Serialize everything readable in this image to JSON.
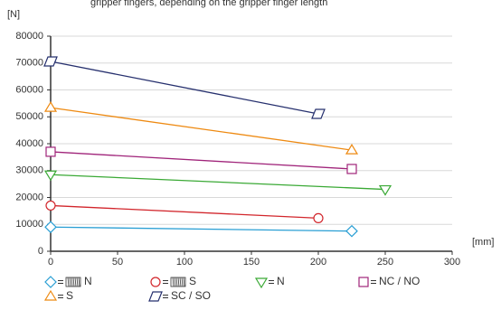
{
  "chart_data": {
    "type": "line",
    "title": "gripper fingers, depending on the gripper finger length",
    "y_label": "[N]",
    "x_label": "[mm]",
    "xlim": [
      0,
      300
    ],
    "xticks": [
      0,
      50,
      100,
      150,
      200,
      250,
      300
    ],
    "ylim": [
      0,
      80000
    ],
    "yticks": [
      0,
      10000,
      20000,
      30000,
      40000,
      50000,
      60000,
      70000,
      80000
    ],
    "grid": true,
    "series": [
      {
        "name": "N",
        "color": "#2a9fd4",
        "marker": "diamond",
        "spring": true,
        "x": [
          0,
          225
        ],
        "values": [
          9000,
          7500
        ]
      },
      {
        "name": "S",
        "color": "#d2262c",
        "marker": "circle",
        "spring": true,
        "x": [
          0,
          200
        ],
        "values": [
          17000,
          12300
        ]
      },
      {
        "name": "N",
        "color": "#3aa935",
        "marker": "triangle-down",
        "spring": false,
        "x": [
          0,
          250
        ],
        "values": [
          28500,
          23000
        ]
      },
      {
        "name": "NC / NO",
        "color": "#a0247a",
        "marker": "square",
        "spring": false,
        "x": [
          0,
          225
        ],
        "values": [
          37000,
          30600
        ]
      },
      {
        "name": "S",
        "color": "#ee8a12",
        "marker": "triangle-up",
        "spring": false,
        "x": [
          0,
          225
        ],
        "values": [
          53400,
          37600
        ]
      },
      {
        "name": "SC / SO",
        "color": "#26306e",
        "marker": "parallelogram",
        "spring": false,
        "x": [
          0,
          200
        ],
        "values": [
          70600,
          51100
        ]
      }
    ]
  }
}
